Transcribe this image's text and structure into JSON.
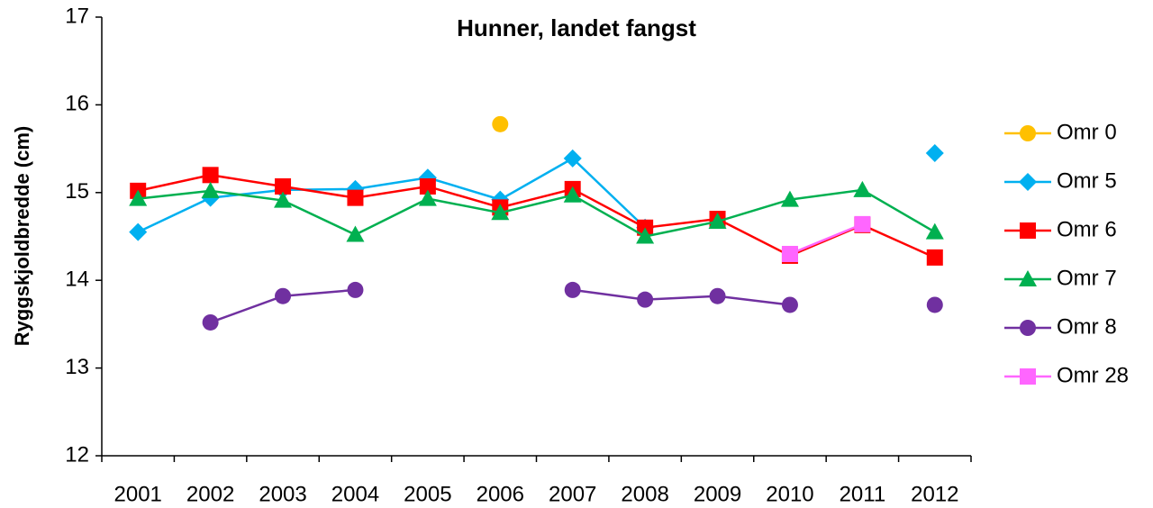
{
  "chart_data": {
    "type": "line",
    "title": "Hunner, landet fangst",
    "y_label": "Ryggskjoldbredde (cm)",
    "categories": [
      "2001",
      "2002",
      "2003",
      "2004",
      "2005",
      "2006",
      "2007",
      "2008",
      "2009",
      "2010",
      "2011",
      "2012"
    ],
    "ylim": [
      12,
      17
    ],
    "yticks": [
      12,
      13,
      14,
      15,
      16,
      17
    ],
    "grid": false,
    "legend": "right",
    "series": [
      {
        "name": "Omr 0",
        "color": "#FFC000",
        "marker": "circle",
        "values": [
          null,
          null,
          null,
          null,
          null,
          15.78,
          null,
          null,
          null,
          null,
          null,
          null
        ]
      },
      {
        "name": "Omr 5",
        "color": "#00B0F0",
        "marker": "diamond",
        "values": [
          14.55,
          14.94,
          15.03,
          15.04,
          15.17,
          14.92,
          15.39,
          14.6,
          null,
          null,
          null,
          15.45
        ]
      },
      {
        "name": "Omr 6",
        "color": "#FF0000",
        "marker": "square",
        "values": [
          15.02,
          15.2,
          15.07,
          14.94,
          15.07,
          14.83,
          15.04,
          14.6,
          14.7,
          14.28,
          14.63,
          14.26
        ]
      },
      {
        "name": "Omr 7",
        "color": "#00B050",
        "marker": "triangle",
        "values": [
          14.93,
          15.02,
          14.91,
          14.52,
          14.93,
          14.77,
          14.97,
          14.5,
          14.67,
          14.92,
          15.03,
          14.55
        ]
      },
      {
        "name": "Omr 8",
        "color": "#7030A0",
        "marker": "circle",
        "values": [
          null,
          13.52,
          13.82,
          13.89,
          null,
          null,
          13.89,
          13.78,
          13.82,
          13.72,
          null,
          13.72
        ]
      },
      {
        "name": "Omr 28",
        "color": "#FF66FF",
        "marker": "square",
        "values": [
          null,
          null,
          null,
          null,
          null,
          null,
          null,
          null,
          null,
          14.3,
          14.64,
          null
        ]
      }
    ]
  }
}
